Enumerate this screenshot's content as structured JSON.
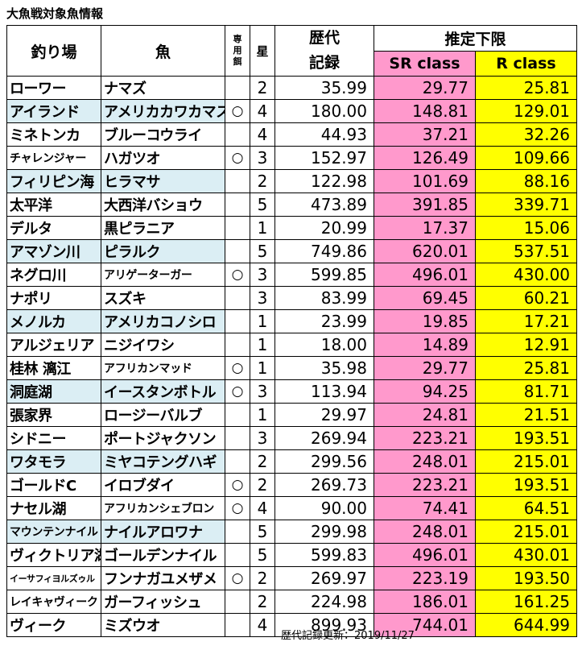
{
  "title": "大魚戦対象魚情報",
  "header": {
    "location": "釣り場",
    "fish": "魚",
    "bait": [
      "専",
      "用",
      "餌"
    ],
    "star": "星",
    "record": [
      "歴代",
      "記録"
    ],
    "limit": "推定下限",
    "sr": "SR class",
    "r": "R class"
  },
  "rows": [
    {
      "location": "ローワー",
      "fish": "ナマズ",
      "bait": "",
      "star": "2",
      "record": "35.99",
      "sr": "29.77",
      "r": "25.81",
      "hl": false,
      "loc_size": "normal",
      "fish_size": "normal"
    },
    {
      "location": "アイランド",
      "fish": "アメリカカワカマス",
      "bait": "○",
      "star": "4",
      "record": "180.00",
      "sr": "148.81",
      "r": "129.01",
      "hl": true,
      "loc_size": "normal",
      "fish_size": "normal"
    },
    {
      "location": "ミネトンカ",
      "fish": "ブルーコウライ",
      "bait": "",
      "star": "4",
      "record": "44.93",
      "sr": "37.21",
      "r": "32.26",
      "hl": false,
      "loc_size": "normal",
      "fish_size": "normal"
    },
    {
      "location": "チャレンジャー",
      "fish": "ハガツオ",
      "bait": "○",
      "star": "3",
      "record": "152.97",
      "sr": "126.49",
      "r": "109.66",
      "hl": false,
      "loc_size": "small",
      "fish_size": "normal"
    },
    {
      "location": "フィリピン海",
      "fish": "ヒラマサ",
      "bait": "",
      "star": "2",
      "record": "122.98",
      "sr": "101.69",
      "r": "88.16",
      "hl": true,
      "loc_size": "normal",
      "fish_size": "normal"
    },
    {
      "location": "太平洋",
      "fish": "大西洋バショウ",
      "bait": "",
      "star": "5",
      "record": "473.89",
      "sr": "391.85",
      "r": "339.71",
      "hl": false,
      "loc_size": "normal",
      "fish_size": "normal"
    },
    {
      "location": "デルタ",
      "fish": "黒ピラニア",
      "bait": "",
      "star": "1",
      "record": "20.99",
      "sr": "17.37",
      "r": "15.06",
      "hl": false,
      "loc_size": "normal",
      "fish_size": "normal"
    },
    {
      "location": "アマゾン川",
      "fish": "ピラルク",
      "bait": "",
      "star": "5",
      "record": "749.86",
      "sr": "620.01",
      "r": "537.51",
      "hl": true,
      "loc_size": "normal",
      "fish_size": "normal"
    },
    {
      "location": "ネグロ川",
      "fish": "アリゲーターガー",
      "bait": "○",
      "star": "3",
      "record": "599.85",
      "sr": "496.01",
      "r": "430.00",
      "hl": false,
      "loc_size": "normal",
      "fish_size": "small"
    },
    {
      "location": "ナポリ",
      "fish": "スズキ",
      "bait": "",
      "star": "3",
      "record": "83.99",
      "sr": "69.45",
      "r": "60.21",
      "hl": false,
      "loc_size": "normal",
      "fish_size": "normal"
    },
    {
      "location": "メノルカ",
      "fish": "アメリカコノシロ",
      "bait": "",
      "star": "1",
      "record": "23.99",
      "sr": "19.85",
      "r": "17.21",
      "hl": true,
      "loc_size": "normal",
      "fish_size": "normal"
    },
    {
      "location": "アルジェリア",
      "fish": "ニジイワシ",
      "bait": "",
      "star": "1",
      "record": "18.00",
      "sr": "14.89",
      "r": "12.91",
      "hl": false,
      "loc_size": "normal",
      "fish_size": "normal"
    },
    {
      "location": "桂林 漓江",
      "fish": "アフリカンマッド",
      "bait": "○",
      "star": "1",
      "record": "35.98",
      "sr": "29.77",
      "r": "25.81",
      "hl": false,
      "loc_size": "normal",
      "fish_size": "small"
    },
    {
      "location": "洞庭湖",
      "fish": "イースタンボトル",
      "bait": "○",
      "star": "3",
      "record": "113.94",
      "sr": "94.25",
      "r": "81.71",
      "hl": true,
      "loc_size": "normal",
      "fish_size": "normal"
    },
    {
      "location": "張家界",
      "fish": "ロージーバルブ",
      "bait": "",
      "star": "1",
      "record": "29.97",
      "sr": "24.81",
      "r": "21.51",
      "hl": false,
      "loc_size": "normal",
      "fish_size": "normal"
    },
    {
      "location": "シドニー",
      "fish": "ポートジャクソン",
      "bait": "",
      "star": "3",
      "record": "269.94",
      "sr": "223.21",
      "r": "193.51",
      "hl": false,
      "loc_size": "normal",
      "fish_size": "normal"
    },
    {
      "location": "ワタモラ",
      "fish": "ミヤコテングハギ",
      "bait": "",
      "star": "2",
      "record": "299.56",
      "sr": "248.01",
      "r": "215.01",
      "hl": true,
      "loc_size": "normal",
      "fish_size": "normal"
    },
    {
      "location": "ゴールドC",
      "fish": "イロブダイ",
      "bait": "○",
      "star": "2",
      "record": "269.73",
      "sr": "223.21",
      "r": "193.51",
      "hl": false,
      "loc_size": "normal",
      "fish_size": "normal"
    },
    {
      "location": "ナセル湖",
      "fish": "アフリカンシェブロン",
      "bait": "○",
      "star": "4",
      "record": "90.00",
      "sr": "74.41",
      "r": "64.51",
      "hl": false,
      "loc_size": "normal",
      "fish_size": "small"
    },
    {
      "location": "マウンテンナイル",
      "fish": "ナイルアロワナ",
      "bait": "",
      "star": "5",
      "record": "299.98",
      "sr": "248.01",
      "r": "215.01",
      "hl": true,
      "loc_size": "small",
      "fish_size": "normal"
    },
    {
      "location": "ヴィクトリア湖",
      "fish": "ゴールデンナイル",
      "bait": "",
      "star": "5",
      "record": "599.83",
      "sr": "496.01",
      "r": "430.01",
      "hl": false,
      "loc_size": "normal",
      "fish_size": "normal"
    },
    {
      "location": "イーサフィヨルズゥル",
      "fish": "フンナガユメザメ",
      "bait": "○",
      "star": "2",
      "record": "269.97",
      "sr": "223.19",
      "r": "193.50",
      "hl": false,
      "loc_size": "tiny",
      "fish_size": "normal"
    },
    {
      "location": "レイキャヴィーク",
      "fish": "ガーフィッシュ",
      "bait": "",
      "star": "2",
      "record": "224.98",
      "sr": "186.01",
      "r": "161.25",
      "hl": false,
      "loc_size": "small",
      "fish_size": "normal"
    },
    {
      "location": "ヴィーク",
      "fish": "ミズウオ",
      "bait": "",
      "star": "4",
      "record": "899.93",
      "sr": "744.01",
      "r": "644.99",
      "hl": false,
      "loc_size": "normal",
      "fish_size": "normal"
    }
  ],
  "footer": "歴代記録更新：2019/11/27"
}
